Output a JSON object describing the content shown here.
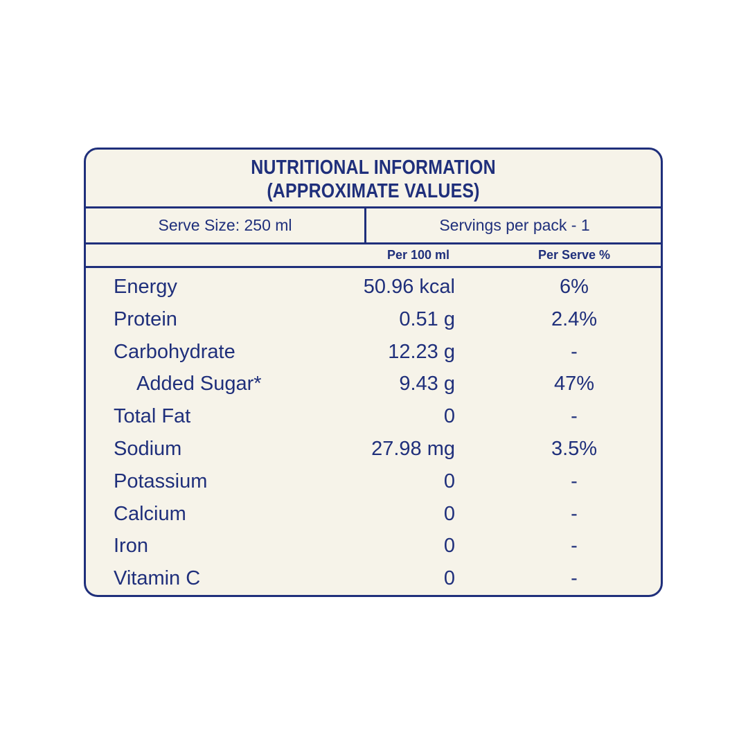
{
  "label": {
    "title_line1": "NUTRITIONAL INFORMATION",
    "title_line2": "(APPROXIMATE VALUES)",
    "serve_size": "Serve Size: 250 ml",
    "servings_per_pack": "Servings per pack - 1",
    "col_per100": "Per 100 ml",
    "col_perserve": "Per Serve %",
    "rows": [
      {
        "name": "Energy",
        "per100": "50.96 kcal",
        "perserve": "6%",
        "indent": false
      },
      {
        "name": "Protein",
        "per100": "0.51 g",
        "perserve": "2.4%",
        "indent": false
      },
      {
        "name": "Carbohydrate",
        "per100": "12.23 g",
        "perserve": "-",
        "indent": false
      },
      {
        "name": "Added Sugar*",
        "per100": "9.43 g",
        "perserve": "47%",
        "indent": true
      },
      {
        "name": "Total Fat",
        "per100": "0",
        "perserve": "-",
        "indent": false
      },
      {
        "name": "Sodium",
        "per100": "27.98 mg",
        "perserve": "3.5%",
        "indent": false
      },
      {
        "name": "Potassium",
        "per100": "0",
        "perserve": "-",
        "indent": false
      },
      {
        "name": "Calcium",
        "per100": "0",
        "perserve": "-",
        "indent": false
      },
      {
        "name": "Iron",
        "per100": "0",
        "perserve": "-",
        "indent": false
      },
      {
        "name": "Vitamin C",
        "per100": "0",
        "perserve": "-",
        "indent": false
      }
    ]
  },
  "colors": {
    "ink": "#1f2f7b",
    "panel": "#f6f3e9",
    "background": "#ffffff"
  }
}
